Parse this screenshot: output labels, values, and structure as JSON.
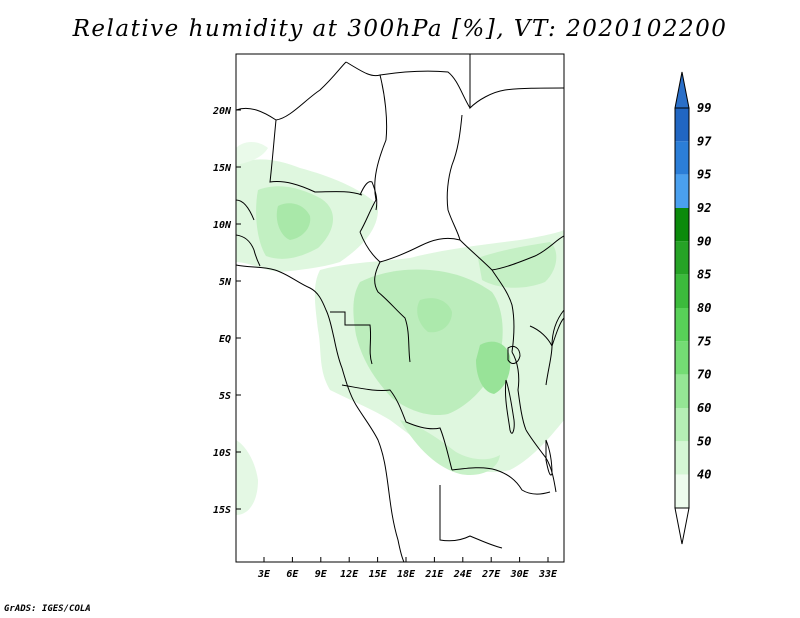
{
  "title": "Relative humidity at 300hPa [%], VT: 2020102200",
  "credit": "GrADS: IGES/COLA",
  "map": {
    "lat_ticks": [
      "20N",
      "15N",
      "10N",
      "5N",
      "EQ",
      "5S",
      "10S",
      "15S"
    ],
    "lon_ticks": [
      "3E",
      "6E",
      "9E",
      "12E",
      "15E",
      "18E",
      "21E",
      "24E",
      "27E",
      "30E",
      "33E"
    ]
  },
  "colorbar": {
    "levels": [
      "99",
      "97",
      "95",
      "92",
      "90",
      "85",
      "80",
      "75",
      "70",
      "60",
      "50",
      "40"
    ],
    "colors": [
      "#2166c2",
      "#2b7ed8",
      "#4aa0ef",
      "#0b8a0b",
      "#26a326",
      "#3cbb3c",
      "#58d158",
      "#74dc74",
      "#95e695",
      "#b5efb5",
      "#d4f6d4",
      "#edfbed"
    ],
    "top_color": "#2a6fc8",
    "bottom_color": "#ffffff"
  },
  "colors": {
    "humidity_light": "#e6f9e6",
    "humidity_mid": "#bdefbd",
    "humidity_dark": "#95e295"
  }
}
